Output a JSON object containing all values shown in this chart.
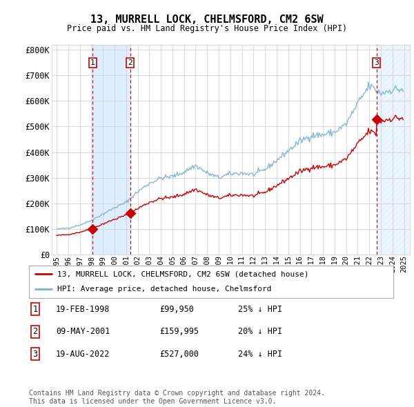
{
  "title": "13, MURRELL LOCK, CHELMSFORD, CM2 6SW",
  "subtitle": "Price paid vs. HM Land Registry's House Price Index (HPI)",
  "ylim": [
    0,
    820000
  ],
  "yticks": [
    0,
    100000,
    200000,
    300000,
    400000,
    500000,
    600000,
    700000,
    800000
  ],
  "ytick_labels": [
    "£0",
    "£100K",
    "£200K",
    "£300K",
    "£400K",
    "£500K",
    "£600K",
    "£700K",
    "£800K"
  ],
  "xlim_start": 1994.58,
  "xlim_end": 2025.5,
  "price_paid_dates": [
    1998.12,
    2001.36,
    2022.63
  ],
  "price_paid_values": [
    99950,
    159995,
    527000
  ],
  "hpi_line_color": "#7ab0d4",
  "price_line_color": "#cc0000",
  "vline_color": "#cc0000",
  "shade_color": "#ddeeff",
  "footer": "Contains HM Land Registry data © Crown copyright and database right 2024.\nThis data is licensed under the Open Government Licence v3.0.",
  "legend_label_price": "13, MURRELL LOCK, CHELMSFORD, CM2 6SW (detached house)",
  "legend_label_hpi": "HPI: Average price, detached house, Chelmsford",
  "table_rows": [
    {
      "num": "1",
      "date": "19-FEB-1998",
      "price": "£99,950",
      "hpi": "25% ↓ HPI"
    },
    {
      "num": "2",
      "date": "09-MAY-2001",
      "price": "£159,995",
      "hpi": "20% ↓ HPI"
    },
    {
      "num": "3",
      "date": "19-AUG-2022",
      "price": "£527,000",
      "hpi": "24% ↓ HPI"
    }
  ],
  "bg_color": "#ffffff",
  "grid_color": "#cccccc"
}
